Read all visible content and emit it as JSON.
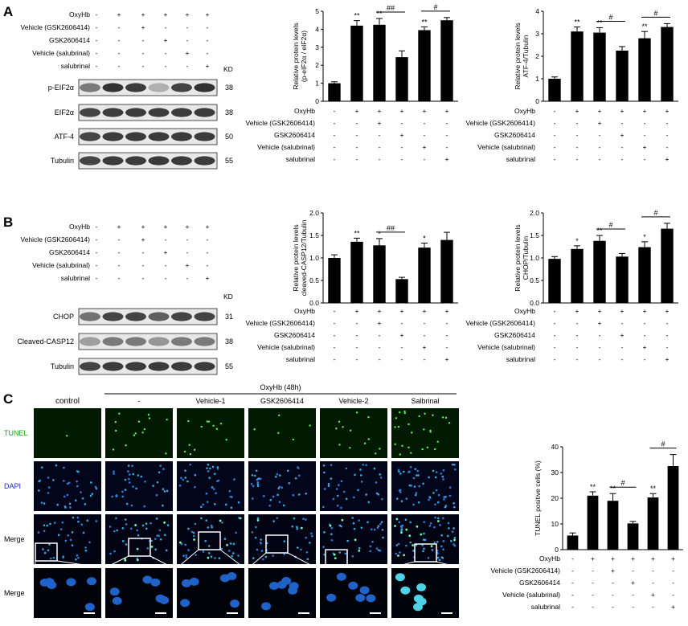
{
  "panel_labels": [
    "A",
    "B",
    "C"
  ],
  "treatments": [
    "OxyHb",
    "Vehicle (GSK2606414)",
    "GSK2606414",
    "Vehicle (salubrinal)",
    "salubrinal"
  ],
  "design": [
    [
      "-",
      "+",
      "+",
      "+",
      "+",
      "+"
    ],
    [
      "-",
      "-",
      "+",
      "-",
      "-",
      "-"
    ],
    [
      "-",
      "-",
      "-",
      "+",
      "-",
      "-"
    ],
    [
      "-",
      "-",
      "-",
      "-",
      "+",
      "-"
    ],
    [
      "-",
      "-",
      "-",
      "-",
      "-",
      "+"
    ]
  ],
  "kd_label": "KD",
  "blots": {
    "A": [
      {
        "name": "p-EIF2α",
        "kd": "38"
      },
      {
        "name": "EIF2α",
        "kd": "38"
      },
      {
        "name": "ATF-4",
        "kd": "50"
      },
      {
        "name": "Tubulin",
        "kd": "55"
      }
    ],
    "B": [
      {
        "name": "CHOP",
        "kd": "31"
      },
      {
        "name": "Cleaved-CASP12",
        "kd": "38"
      },
      {
        "name": "Tubulin",
        "kd": "55"
      }
    ]
  },
  "microscopy": {
    "group_label": "OxyHb (48h)",
    "columns": [
      "control",
      "-",
      "Vehicle-1",
      "GSK2606414",
      "Vehicle-2",
      "Salbrinal"
    ],
    "rows": [
      "TUNEL",
      "DAPI",
      "Merge",
      "Merge"
    ],
    "row_colors": [
      "#1a9a1a",
      "#1a2fb5",
      "#000000",
      "#000000"
    ]
  },
  "chart_data": [
    {
      "type": "bar",
      "ylabel": "Relative protein levels\n(p-eIF2α / eIF2α)",
      "ylim": [
        0,
        5
      ],
      "yticks": [
        "0",
        "1",
        "2",
        "3",
        "4",
        "5"
      ],
      "values": [
        1.0,
        4.2,
        4.25,
        2.45,
        3.95,
        4.5
      ],
      "errors": [
        0.08,
        0.28,
        0.35,
        0.35,
        0.18,
        0.15
      ],
      "stars": [
        "",
        "**",
        "**",
        "",
        "**",
        ""
      ],
      "brackets": [
        {
          "from": 2,
          "to": 3,
          "label": "##"
        },
        {
          "from": 4,
          "to": 5,
          "label": "#"
        }
      ]
    },
    {
      "type": "bar",
      "ylabel": "Relative protein levels\nATF-4/Tubulin",
      "ylim": [
        0,
        4
      ],
      "yticks": [
        "0",
        "1",
        "2",
        "3",
        "4"
      ],
      "values": [
        1.0,
        3.1,
        3.05,
        2.25,
        2.8,
        3.3
      ],
      "errors": [
        0.08,
        0.2,
        0.22,
        0.18,
        0.3,
        0.15
      ],
      "stars": [
        "",
        "**",
        "**",
        "",
        "**",
        ""
      ],
      "brackets": [
        {
          "from": 2,
          "to": 3,
          "label": "#"
        },
        {
          "from": 4,
          "to": 5,
          "label": "#"
        }
      ]
    },
    {
      "type": "bar",
      "ylabel": "Relative protein levels\ncleaved-CASP12/Tubulin",
      "ylim": [
        0,
        2.0
      ],
      "yticks": [
        "0.0",
        "0.5",
        "1.0",
        "1.5",
        "2.0"
      ],
      "values": [
        1.0,
        1.36,
        1.28,
        0.53,
        1.23,
        1.4
      ],
      "errors": [
        0.07,
        0.08,
        0.15,
        0.04,
        0.1,
        0.17
      ],
      "stars": [
        "",
        "**",
        "*",
        "",
        "*",
        ""
      ],
      "brackets": [
        {
          "from": 2,
          "to": 3,
          "label": "##"
        }
      ]
    },
    {
      "type": "bar",
      "ylabel": "Relative protein levels\nCHOP/Tubulin",
      "ylim": [
        0,
        2.0
      ],
      "yticks": [
        "0.0",
        "0.5",
        "1.0",
        "1.5",
        "2.0"
      ],
      "values": [
        0.98,
        1.2,
        1.38,
        1.03,
        1.24,
        1.65
      ],
      "errors": [
        0.05,
        0.07,
        0.12,
        0.07,
        0.12,
        0.12
      ],
      "stars": [
        "",
        "*",
        "**",
        "",
        "*",
        ""
      ],
      "brackets": [
        {
          "from": 2,
          "to": 3,
          "label": "#"
        },
        {
          "from": 4,
          "to": 5,
          "label": "#"
        }
      ]
    },
    {
      "type": "bar",
      "ylabel": "TUNEL positive cells (%)",
      "ylim": [
        0,
        40
      ],
      "yticks": [
        "0",
        "10",
        "20",
        "30",
        "40"
      ],
      "values": [
        5.5,
        21.0,
        19.0,
        10.2,
        20.3,
        32.5
      ],
      "errors": [
        1.0,
        1.5,
        2.8,
        0.8,
        1.5,
        4.5
      ],
      "stars": [
        "",
        "**",
        "**",
        "",
        "**",
        ""
      ],
      "brackets": [
        {
          "from": 2,
          "to": 3,
          "label": "#"
        },
        {
          "from": 4,
          "to": 5,
          "label": "#"
        }
      ]
    }
  ]
}
